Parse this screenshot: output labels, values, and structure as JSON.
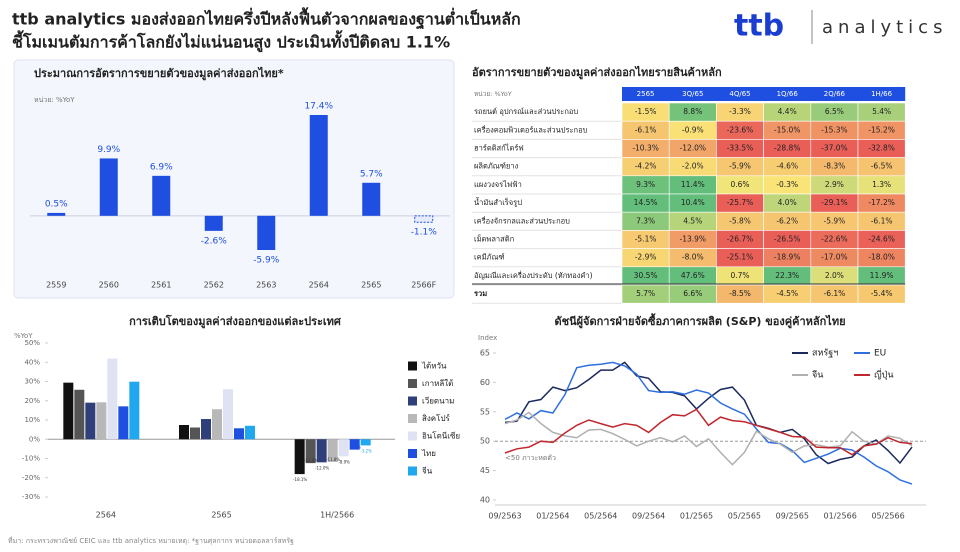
{
  "header": {
    "title_lines": [
      "ttb analytics มองส่งออกไทยครึ่งปีหลังฟื้นตัวจากผลของฐานต่ำเป็นหลัก",
      "ชี้โมเมนตัมการค้าโลกยังไม่แน่นอนสูง ประเมินทั้งปีติดลบ 1.1%"
    ],
    "logo": {
      "brand": "ttb",
      "product": "analytics"
    }
  },
  "chart_data": [
    {
      "type": "bar",
      "title": "ประมาณการอัตราการขยายตัวของมูลค่าส่งออกไทย*",
      "unit": "หน่วย: %YoY",
      "categories": [
        "2559",
        "2560",
        "2561",
        "2562",
        "2563",
        "2564",
        "2565",
        "2566F"
      ],
      "values": [
        0.5,
        9.9,
        6.9,
        -2.6,
        -5.9,
        17.4,
        5.7,
        -1.1
      ],
      "value_labels": [
        "0.5%",
        "9.9%",
        "6.9%",
        "-2.6%",
        "-5.9%",
        "17.4%",
        "5.7%",
        "-1.1%"
      ],
      "color": "#1f4fe0",
      "last_bar_dashed": true
    },
    {
      "type": "bar",
      "title": "การเติบโตของมูลค่าส่งออกของแต่ละประเทศ",
      "unit": "%YoY",
      "categories": [
        "2564",
        "2565",
        "1H/2566"
      ],
      "series": [
        {
          "name": "ไต้หวัน",
          "color": "#111111",
          "values": [
            29.4,
            7.4,
            -18.1
          ],
          "value_labels": [
            null,
            null,
            "-18.1%"
          ]
        },
        {
          "name": "เกาหลีใต้",
          "color": "#555555",
          "values": [
            25.7,
            6.1,
            -12.4
          ],
          "value_labels": [
            null,
            null,
            "-12.4%"
          ]
        },
        {
          "name": "เวียดนาม",
          "color": "#2e3f7a",
          "values": [
            19.0,
            10.5,
            -12.0
          ],
          "value_labels": [
            null,
            null,
            "-12.0%"
          ]
        },
        {
          "name": "สิงคโปร์",
          "color": "#b8b8b8",
          "values": [
            19.2,
            15.6,
            -11.8
          ],
          "value_labels": [
            null,
            null,
            "-11.8%"
          ]
        },
        {
          "name": "อินโดนีเซีย",
          "color": "#dfe2f2",
          "values": [
            41.9,
            26.0,
            -8.9
          ],
          "value_labels": [
            null,
            null,
            "-8.9%"
          ]
        },
        {
          "name": "ไทย",
          "color": "#1f4fe0",
          "values": [
            17.1,
            5.7,
            -5.4
          ],
          "value_labels": [
            null,
            null,
            "-5.4%"
          ]
        },
        {
          "name": "จีน",
          "color": "#1fa8f0",
          "values": [
            29.9,
            7.0,
            -3.2
          ],
          "value_labels": [
            null,
            null,
            "-3.2%"
          ]
        }
      ],
      "ylim": [
        -30,
        50
      ],
      "yticks": [
        {
          "value": -30,
          "label": "-30%"
        },
        {
          "value": -20,
          "label": "-20%"
        },
        {
          "value": -10,
          "label": "-10%"
        },
        {
          "value": 0,
          "label": "0%"
        },
        {
          "value": 10,
          "label": "10%"
        },
        {
          "value": 20,
          "label": "20%"
        },
        {
          "value": 30,
          "label": "30%"
        },
        {
          "value": 40,
          "label": "40%"
        },
        {
          "value": 50,
          "label": "50%"
        }
      ],
      "legend": "right"
    },
    {
      "type": "line",
      "title": "ดัชนีผู้จัดการฝ่ายจัดซื้อภาคการผลิต (S&P) ของคู่ค้าหลักไทย",
      "unit": "Index",
      "categories": [
        "09/2563",
        null,
        null,
        null,
        "01/2564",
        null,
        null,
        null,
        "05/2564",
        null,
        null,
        null,
        "09/2564",
        null,
        null,
        null,
        "01/2565",
        null,
        null,
        null,
        "05/2565",
        null,
        null,
        null,
        "09/2565",
        null,
        null,
        null,
        "01/2566",
        null,
        null,
        null,
        "05/2566",
        null,
        null
      ],
      "series": [
        {
          "name": "สหรัฐฯ",
          "color": "#1b2a5e",
          "values": [
            53.2,
            53.4,
            56.7,
            57.1,
            59.2,
            58.6,
            59.1,
            60.5,
            62.1,
            62.1,
            63.4,
            61.1,
            60.7,
            58.4,
            58.3,
            57.7,
            55.5,
            57.3,
            58.8,
            59.2,
            57.0,
            52.7,
            52.2,
            51.5,
            52.0,
            50.4,
            47.7,
            46.2,
            46.9,
            47.3,
            49.2,
            50.2,
            48.4,
            46.3,
            49.0
          ]
        },
        {
          "name": "EU",
          "color": "#2f6fe0",
          "values": [
            53.7,
            54.8,
            53.8,
            55.2,
            54.8,
            57.9,
            62.5,
            62.9,
            63.1,
            63.4,
            62.8,
            61.4,
            58.6,
            58.3,
            58.4,
            58.0,
            58.7,
            58.2,
            56.5,
            55.5,
            54.6,
            52.1,
            49.8,
            49.6,
            48.4,
            46.4,
            47.1,
            47.8,
            48.8,
            48.5,
            47.3,
            45.8,
            44.8,
            43.4,
            42.7
          ]
        },
        {
          "name": "จีน",
          "color": "#b0b0b0",
          "values": [
            53.0,
            53.6,
            54.9,
            53.0,
            51.5,
            50.9,
            50.6,
            51.9,
            52.0,
            51.3,
            50.3,
            49.2,
            50.0,
            50.6,
            49.9,
            50.9,
            49.1,
            50.4,
            48.1,
            46.0,
            48.1,
            51.7,
            50.4,
            49.5,
            48.1,
            49.2,
            49.4,
            49.0,
            49.2,
            51.6,
            50.0,
            49.5,
            50.9,
            50.5,
            49.2
          ]
        },
        {
          "name": "ญี่ปุ่น",
          "color": "#c0272d",
          "values": [
            48.0,
            48.7,
            49.0,
            50.0,
            49.8,
            51.4,
            52.7,
            53.6,
            53.0,
            52.4,
            53.0,
            52.7,
            51.5,
            53.2,
            54.5,
            54.3,
            55.4,
            52.7,
            54.1,
            53.5,
            53.3,
            52.7,
            52.1,
            51.5,
            50.8,
            50.7,
            49.0,
            48.9,
            48.9,
            47.7,
            49.2,
            49.5,
            50.6,
            49.8,
            49.6
          ]
        }
      ],
      "ylim": [
        40,
        65
      ],
      "yticks": [
        40,
        45,
        50,
        55,
        60,
        65
      ],
      "reference_line": {
        "value": 50,
        "label": "<50 ภาวะหดตัว"
      },
      "legend": "top-right"
    }
  ],
  "table": {
    "title": "อัตราการขยายตัวของมูลค่าส่งออกไทยรายสินค้าหลัก",
    "unit": "หน่วย: %YoY",
    "columns": [
      "2565",
      "3Q/65",
      "4Q/65",
      "1Q/66",
      "2Q/66",
      "1H/66"
    ],
    "rows": [
      {
        "label": "รถยนต์ อุปกรณ์และส่วนประกอบ",
        "cells": [
          "-1.5%",
          "8.8%",
          "-3.3%",
          "4.4%",
          "6.5%",
          "5.4%"
        ]
      },
      {
        "label": "เครื่องคอมพิวเตอร์และส่วนประกอบ",
        "cells": [
          "-6.1%",
          "-0.9%",
          "-23.6%",
          "-15.0%",
          "-15.3%",
          "-15.2%"
        ]
      },
      {
        "label": "ฮาร์ดดิสก์ไดร์ฟ",
        "cells": [
          "-10.3%",
          "-12.0%",
          "-33.5%",
          "-28.8%",
          "-37.0%",
          "-32.8%"
        ]
      },
      {
        "label": "ผลิตภัณฑ์ยาง",
        "cells": [
          "-4.2%",
          "-2.0%",
          "-5.9%",
          "-4.6%",
          "-8.3%",
          "-6.5%"
        ]
      },
      {
        "label": "แผงวงจรไฟฟ้า",
        "cells": [
          "9.3%",
          "11.4%",
          "0.6%",
          "-0.3%",
          "2.9%",
          "1.3%"
        ]
      },
      {
        "label": "น้ำมันสำเร็จรูป",
        "cells": [
          "14.5%",
          "10.4%",
          "-25.7%",
          "4.0%",
          "-29.1%",
          "-17.2%"
        ]
      },
      {
        "label": "เครื่องจักรกลและส่วนประกอบ",
        "cells": [
          "7.3%",
          "4.5%",
          "-5.8%",
          "-6.2%",
          "-5.9%",
          "-6.1%"
        ]
      },
      {
        "label": "เม็ดพลาสติก",
        "cells": [
          "-5.1%",
          "-13.9%",
          "-26.7%",
          "-26.5%",
          "-22.6%",
          "-24.6%"
        ]
      },
      {
        "label": "เคมีภัณฑ์",
        "cells": [
          "-2.9%",
          "-8.0%",
          "-25.1%",
          "-18.9%",
          "-17.0%",
          "-18.0%"
        ]
      },
      {
        "label": "อัญมณีและเครื่องประดับ (หักทองคำ)",
        "cells": [
          "30.5%",
          "47.6%",
          "0.7%",
          "22.3%",
          "2.0%",
          "11.9%"
        ]
      },
      {
        "label": "รวม",
        "cells": [
          "5.7%",
          "6.6%",
          "-8.5%",
          "-4.5%",
          "-6.1%",
          "-5.4%"
        ]
      }
    ]
  },
  "footer": "ที่มา: กระทรวงพาณิชย์ CEIC และ ttb analytics หมายเหตุ: *ฐานศุลกากร หน่วยดอลลาร์สหรัฐ"
}
